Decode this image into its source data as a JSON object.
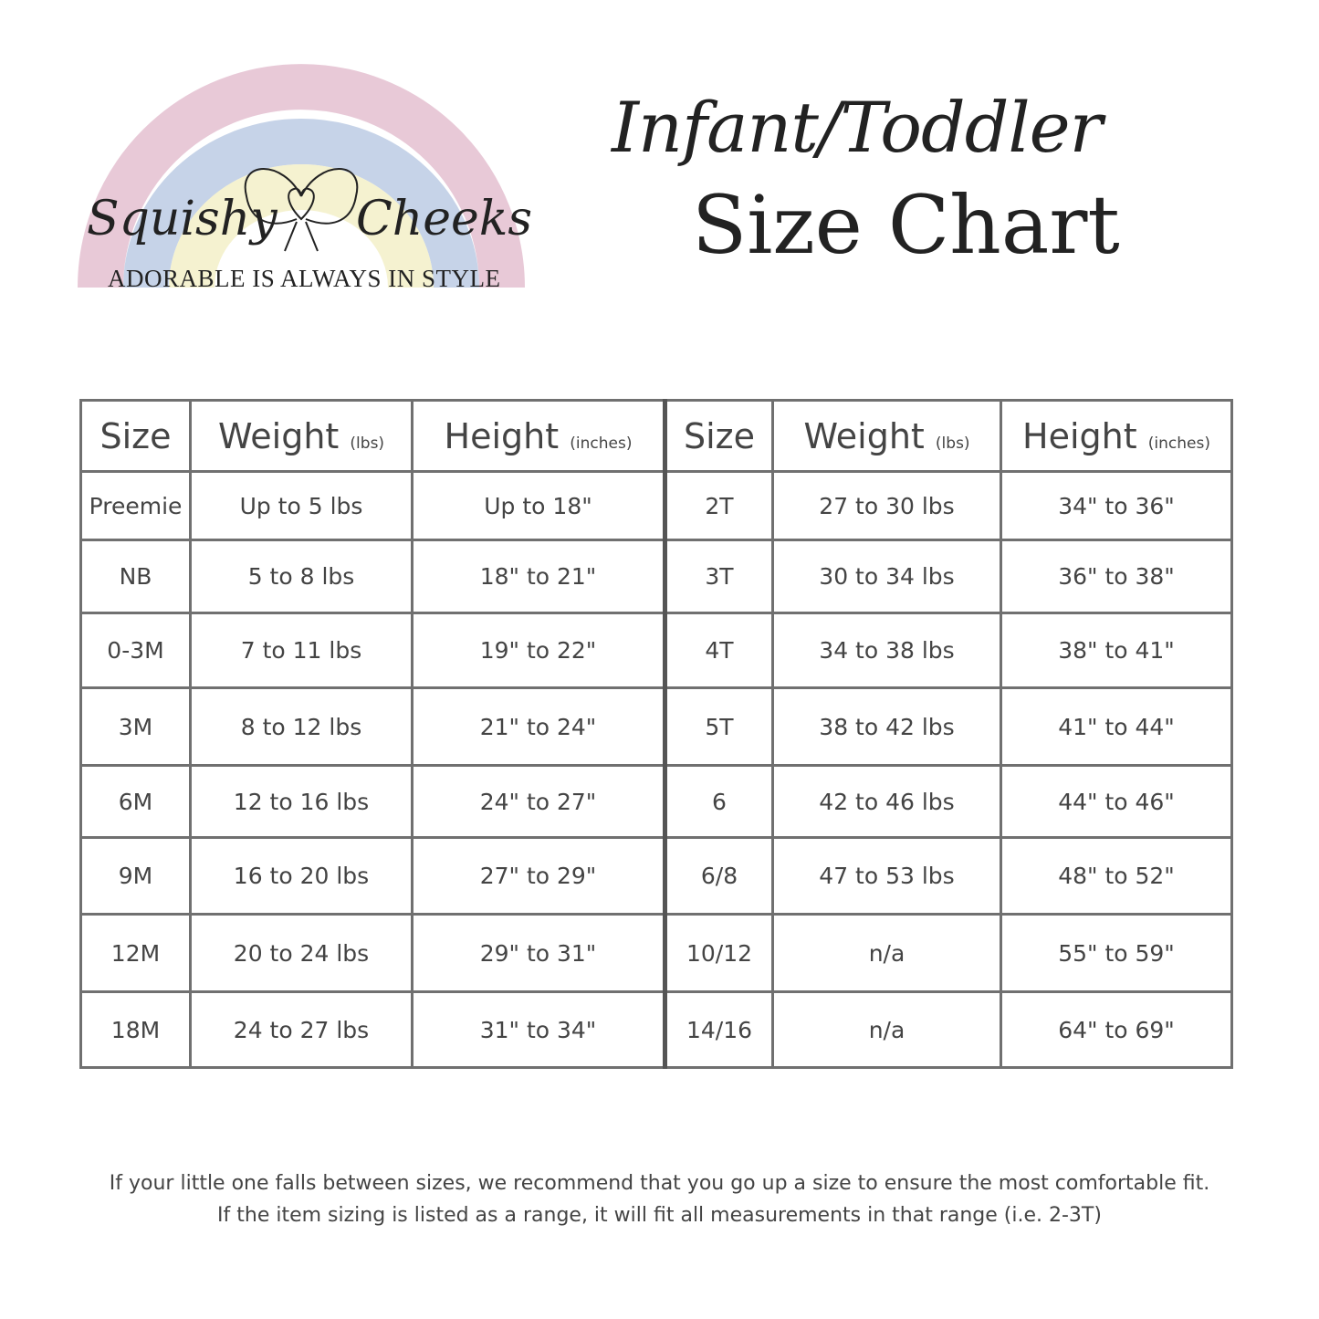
{
  "logo": {
    "brand_left": "Squishy",
    "brand_right": "Cheeks",
    "tagline": "ADORABLE IS ALWAYS IN STYLE",
    "colors": {
      "pink": "#e2bccd",
      "blue": "#b8c8e2",
      "yellow": "#f3efc4"
    }
  },
  "title": {
    "line1": "Infant/Toddler",
    "line2": "Size Chart"
  },
  "table": {
    "headers": [
      {
        "label": "Size",
        "unit": ""
      },
      {
        "label": "Weight",
        "unit": "(lbs)"
      },
      {
        "label": "Height",
        "unit": "(inches)"
      },
      {
        "label": "Size",
        "unit": ""
      },
      {
        "label": "Weight",
        "unit": "(lbs)"
      },
      {
        "label": "Height",
        "unit": "(inches)"
      }
    ],
    "rows": [
      [
        "Preemie",
        "Up to 5 lbs",
        "Up to 18\"",
        "2T",
        "27 to 30 lbs",
        "34\" to 36\""
      ],
      [
        "NB",
        "5 to 8 lbs",
        "18\" to 21\"",
        "3T",
        "30 to 34 lbs",
        "36\" to 38\""
      ],
      [
        "0-3M",
        "7 to 11 lbs",
        "19\" to 22\"",
        "4T",
        "34 to 38 lbs",
        "38\" to 41\""
      ],
      [
        "3M",
        "8 to 12 lbs",
        "21\" to 24\"",
        "5T",
        "38 to 42 lbs",
        "41\" to 44\""
      ],
      [
        "6M",
        "12 to 16 lbs",
        "24\" to 27\"",
        "6",
        "42 to 46 lbs",
        "44\" to 46\""
      ],
      [
        "9M",
        "16 to 20 lbs",
        "27\" to 29\"",
        "6/8",
        "47 to 53 lbs",
        "48\" to 52\""
      ],
      [
        "12M",
        "20 to 24 lbs",
        "29\" to 31\"",
        "10/12",
        "n/a",
        "55\" to 59\""
      ],
      [
        "18M",
        "24 to 27 lbs",
        "31\" to 34\"",
        "14/16",
        "n/a",
        "64\" to 69\""
      ]
    ]
  },
  "footer": {
    "line1": "If your little one falls between sizes, we recommend that you go up a size to ensure the most comfortable fit.",
    "line2": "If the item sizing is listed as a range, it will fit all measurements in that range (i.e. 2-3T)"
  }
}
